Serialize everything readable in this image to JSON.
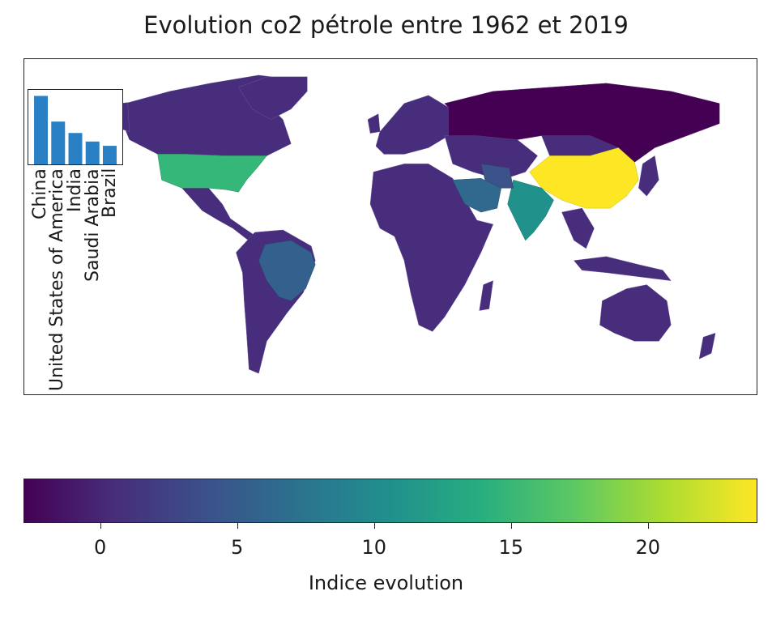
{
  "title": "Evolution co2 pétrole entre 1962 et 2019",
  "map": {
    "regions": [
      {
        "name": "Russia",
        "color": "#440154"
      },
      {
        "name": "China",
        "color": "#fde725"
      },
      {
        "name": "United States of America",
        "color": "#35b779"
      },
      {
        "name": "India",
        "color": "#21918c"
      },
      {
        "name": "Saudi Arabia",
        "color": "#31688e"
      },
      {
        "name": "Brazil",
        "color": "#34608d"
      },
      {
        "name": "Other countries",
        "color": "#472d7b"
      }
    ]
  },
  "chart_data": {
    "type": "bar",
    "categories": [
      "China",
      "United States of America",
      "India",
      "Saudi Arabia",
      "Brazil"
    ],
    "values": [
      24,
      15,
      11,
      8,
      6.5
    ],
    "ylim": [
      0,
      25
    ],
    "bar_color": "#2a80c5"
  },
  "colorbar": {
    "label": "Indice evolution",
    "range": [
      -2.8,
      24
    ],
    "ticks": [
      "0",
      "5",
      "10",
      "15",
      "20"
    ],
    "tick_values": [
      0,
      5,
      10,
      15,
      20
    ],
    "colormap": "viridis"
  }
}
